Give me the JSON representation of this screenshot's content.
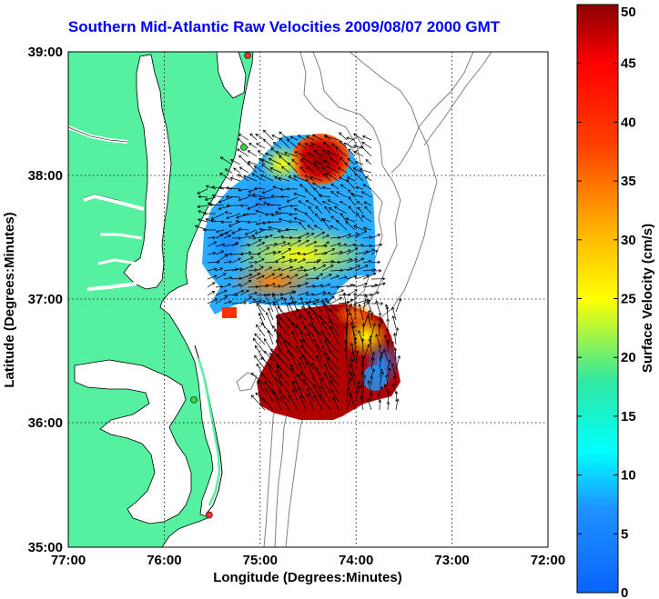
{
  "title": "Southern Mid-Atlantic Raw Velocities 2009/08/07 2000 GMT",
  "map": {
    "xlabel": "Longitude (Degrees:Minutes)",
    "ylabel": "Latitude (Degrees:Minutes)",
    "lon_ticks": [
      "77:00",
      "76:00",
      "75:00",
      "74:00",
      "73:00",
      "72:00"
    ],
    "lat_ticks": [
      "39:00",
      "38:00",
      "37:00",
      "36:00",
      "35:00"
    ],
    "lon_range": [
      -77,
      -72
    ],
    "lat_range": [
      35,
      39
    ],
    "land_color": "#55f0a0",
    "grid": "dotted"
  },
  "colorbar": {
    "label": "Surface Velocity (cm/s)",
    "ticks": [
      "0",
      "5",
      "10",
      "15",
      "20",
      "25",
      "30",
      "35",
      "40",
      "45",
      "50"
    ],
    "min": 0,
    "max": 50,
    "colormap": "jet"
  },
  "stations": [
    {
      "lon": -75.13,
      "lat": 38.97,
      "color": "#ff3030"
    },
    {
      "lon": -75.17,
      "lat": 38.23,
      "color": "#40d040"
    },
    {
      "lon": -75.69,
      "lat": 36.19,
      "color": "#40d040"
    },
    {
      "lon": -75.53,
      "lat": 35.26,
      "color": "#ff3030"
    }
  ]
}
